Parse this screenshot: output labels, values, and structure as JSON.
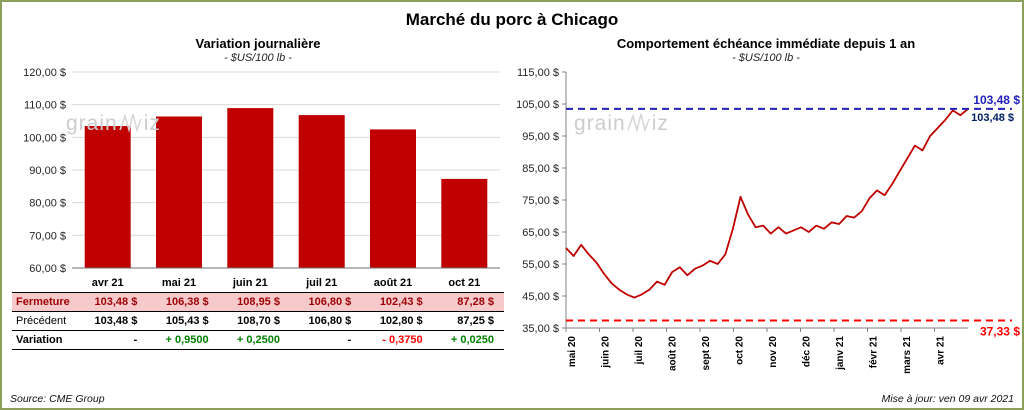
{
  "page": {
    "title": "Marché du porc à Chicago",
    "source": "Source: CME Group",
    "updated": "Mise à jour: ven 09 avr 2021",
    "watermark": {
      "part1": "grain",
      "part2": "iz"
    }
  },
  "colors": {
    "bar": "#c00000",
    "line": "#c00000",
    "grid": "#d9d9d9",
    "axis": "#808080",
    "blue_ref": "#2222bb",
    "blue_ref_label2": "#002060",
    "red_ref": "#ff0000",
    "positive": "#008000",
    "negative": "#ff0000"
  },
  "chart_data": [
    {
      "type": "bar",
      "title": "Variation  journalière",
      "subtitle": "- $US/100 lb -",
      "categories": [
        "avr 21",
        "mai 21",
        "juin 21",
        "juil 21",
        "août 21",
        "oct 21"
      ],
      "values": [
        103.48,
        106.38,
        108.95,
        106.8,
        102.43,
        87.28
      ],
      "ylim": [
        60,
        120
      ],
      "yticks": [
        {
          "v": 60,
          "label": "60,00 $"
        },
        {
          "v": 70,
          "label": "70,00 $"
        },
        {
          "v": 80,
          "label": "80,00 $"
        },
        {
          "v": 90,
          "label": "90,00 $"
        },
        {
          "v": 100,
          "label": "100,00 $"
        },
        {
          "v": 110,
          "label": "110,00 $"
        },
        {
          "v": 120,
          "label": "120,00 $"
        }
      ],
      "grid": true,
      "legend": "none"
    },
    {
      "type": "line",
      "title": "Comportement  échéance  immédiate  depuis 1 an",
      "subtitle": "- $US/100 lb -",
      "x_labels": [
        "mai 20",
        "juin 20",
        "juil 20",
        "août 20",
        "sept 20",
        "oct 20",
        "nov 20",
        "déc 20",
        "janv 21",
        "févr 21",
        "mars 21",
        "avr 21"
      ],
      "values": [
        60,
        57.5,
        61,
        58,
        55.5,
        52,
        49,
        47,
        45.5,
        44.5,
        45.5,
        47,
        49.5,
        48.5,
        52.5,
        54,
        51.5,
        53.5,
        54.5,
        56,
        55,
        58,
        66,
        76,
        70.5,
        66.5,
        67,
        64.5,
        66.5,
        64.5,
        65.5,
        66.5,
        65,
        67,
        66,
        68,
        67.5,
        70,
        69.5,
        71.5,
        75.5,
        78,
        76.5,
        80,
        84,
        88,
        92,
        90.5,
        95,
        97.5,
        100,
        103,
        101.5,
        103.48
      ],
      "ylim": [
        35,
        115
      ],
      "yticks": [
        {
          "v": 35,
          "label": "35,00 $"
        },
        {
          "v": 45,
          "label": "45,00 $"
        },
        {
          "v": 55,
          "label": "55,00 $"
        },
        {
          "v": 65,
          "label": "65,00 $"
        },
        {
          "v": 75,
          "label": "75,00 $"
        },
        {
          "v": 85,
          "label": "85,00 $"
        },
        {
          "v": 95,
          "label": "95,00 $"
        },
        {
          "v": 105,
          "label": "105,00 $"
        },
        {
          "v": 115,
          "label": "115,00 $"
        }
      ],
      "ref_lines": [
        {
          "value": 103.48,
          "label": "103,48 $",
          "label2": "103,48 $",
          "color": "#2222bb"
        },
        {
          "value": 37.33,
          "label": "37,33 $",
          "color": "#ff0000"
        }
      ],
      "grid": false,
      "legend": "none"
    }
  ],
  "table": {
    "rows": [
      {
        "key": "fermeture",
        "label": "Fermeture",
        "values": [
          "103,48  $",
          "106,38  $",
          "108,95  $",
          "106,80  $",
          "102,43  $",
          "87,28  $"
        ]
      },
      {
        "key": "precedent",
        "label": "Précédent",
        "values": [
          "103,48  $",
          "105,43  $",
          "108,70  $",
          "106,80  $",
          "102,80  $",
          "87,25  $"
        ]
      },
      {
        "key": "variation",
        "label": "Variation",
        "values": [
          "-",
          "+ 0,9500",
          "+ 0,2500",
          "-",
          "- 0,3750",
          "+ 0,0250"
        ],
        "value_colors": [
          "#000000",
          "#008000",
          "#008000",
          "#000000",
          "#ff0000",
          "#008000"
        ]
      }
    ]
  }
}
